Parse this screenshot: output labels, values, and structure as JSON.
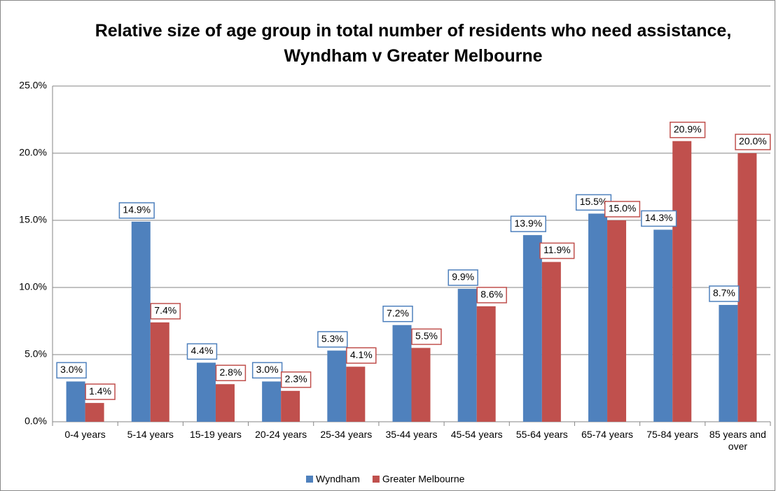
{
  "chart_data": {
    "type": "bar",
    "title": "Relative size of age group in total number of residents who need assistance, Wyndham v Greater Melbourne",
    "categories": [
      "0-4 years",
      "5-14 years",
      "15-19 years",
      "20-24 years",
      "25-34 years",
      "35-44 years",
      "45-54 years",
      "55-64 years",
      "65-74 years",
      "75-84 years",
      "85 years and over"
    ],
    "series": [
      {
        "name": "Wyndham",
        "color": "#4f81bd",
        "values": [
          3.0,
          14.9,
          4.4,
          3.0,
          5.3,
          7.2,
          9.9,
          13.9,
          15.5,
          14.3,
          8.7
        ],
        "value_labels": [
          "3.0%",
          "14.9%",
          "4.4%",
          "3.0%",
          "5.3%",
          "7.2%",
          "9.9%",
          "13.9%",
          "15.5%",
          "14.3%",
          "8.7%"
        ]
      },
      {
        "name": "Greater Melbourne",
        "color": "#c0504d",
        "values": [
          1.4,
          7.4,
          2.8,
          2.3,
          4.1,
          5.5,
          8.6,
          11.9,
          15.0,
          20.9,
          20.0
        ],
        "value_labels": [
          "1.4%",
          "7.4%",
          "2.8%",
          "2.3%",
          "4.1%",
          "5.5%",
          "8.6%",
          "11.9%",
          "15.0%",
          "20.9%",
          "20.0%"
        ]
      }
    ],
    "ylim": [
      0,
      25
    ],
    "yticks": [
      {
        "value": 0,
        "label": "0.0%"
      },
      {
        "value": 5,
        "label": "5.0%"
      },
      {
        "value": 10,
        "label": "10.0%"
      },
      {
        "value": 15,
        "label": "15.0%"
      },
      {
        "value": 20,
        "label": "20.0%"
      },
      {
        "value": 25,
        "label": "25.0%"
      }
    ],
    "grid": true,
    "legend": "bottom"
  }
}
